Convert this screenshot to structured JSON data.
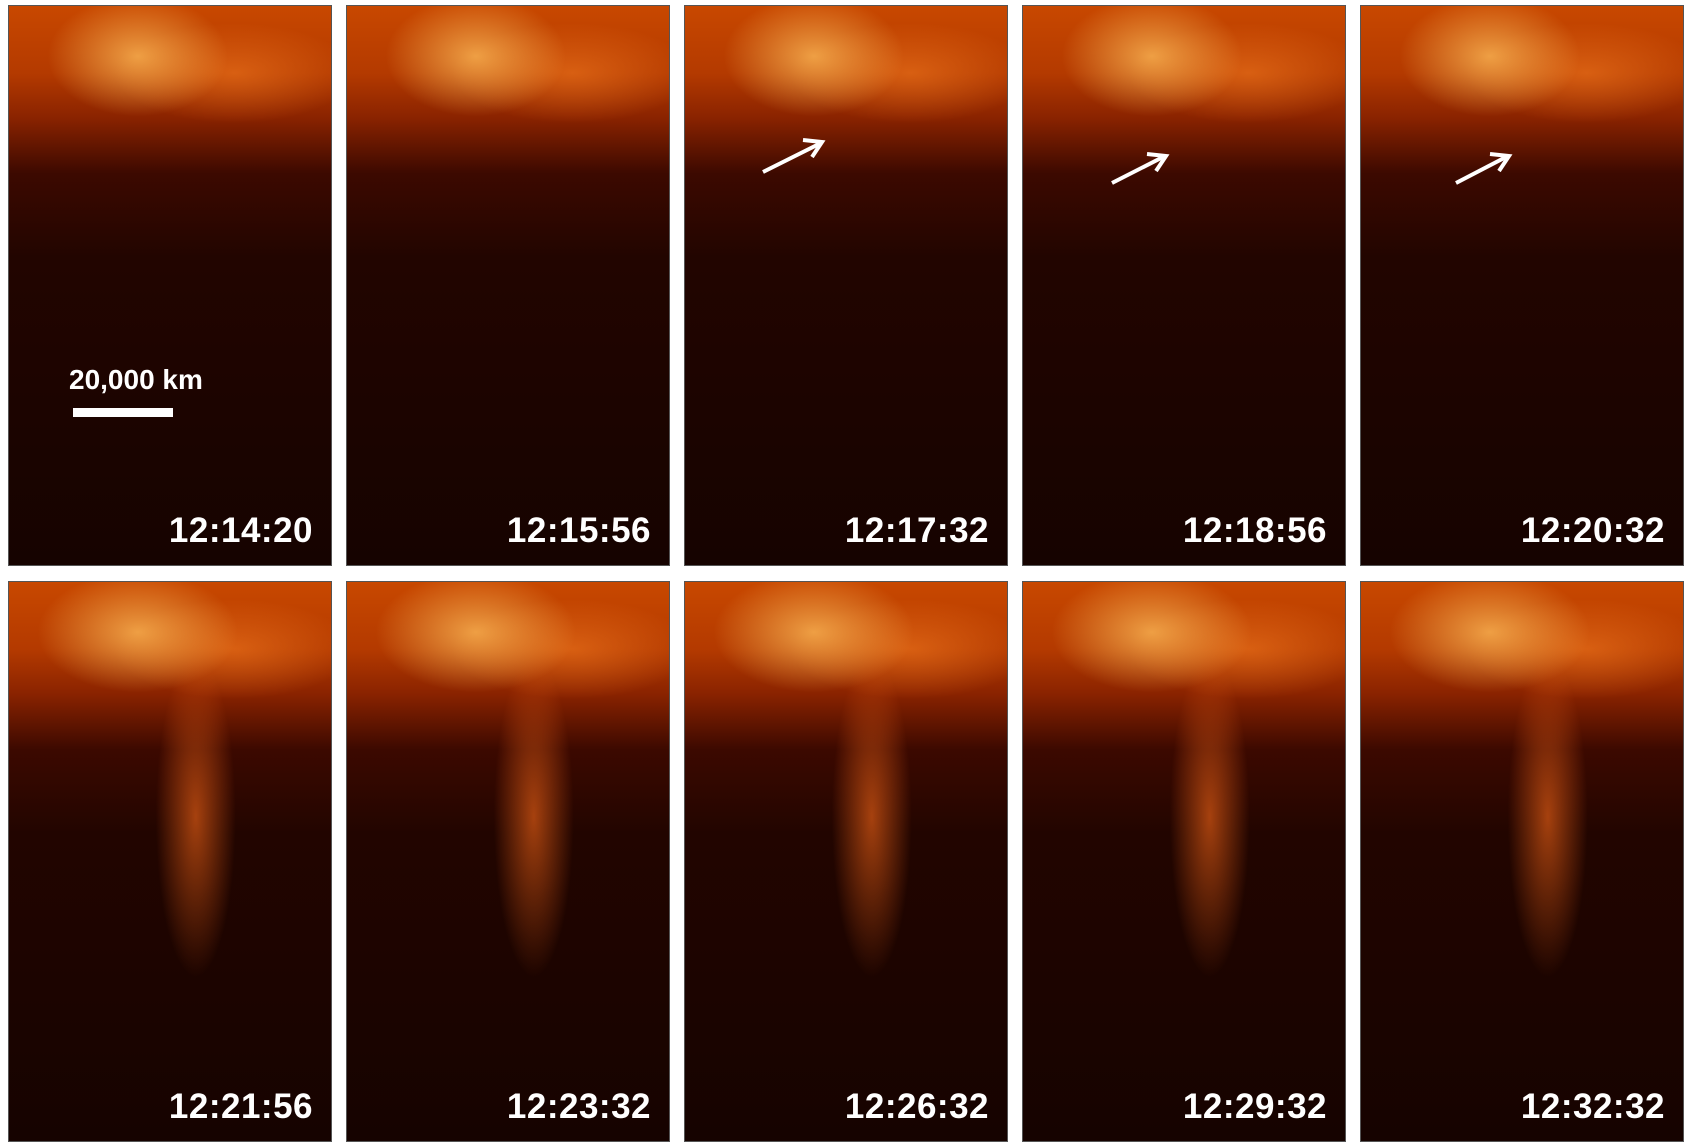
{
  "scale_bar": {
    "label": "20,000 km"
  },
  "panels": [
    {
      "time": "12:14:20"
    },
    {
      "time": "12:15:56"
    },
    {
      "time": "12:17:32"
    },
    {
      "time": "12:18:56"
    },
    {
      "time": "12:20:32"
    },
    {
      "time": "12:21:56"
    },
    {
      "time": "12:23:32"
    },
    {
      "time": "12:26:32"
    },
    {
      "time": "12:29:32"
    },
    {
      "time": "12:32:32"
    }
  ]
}
